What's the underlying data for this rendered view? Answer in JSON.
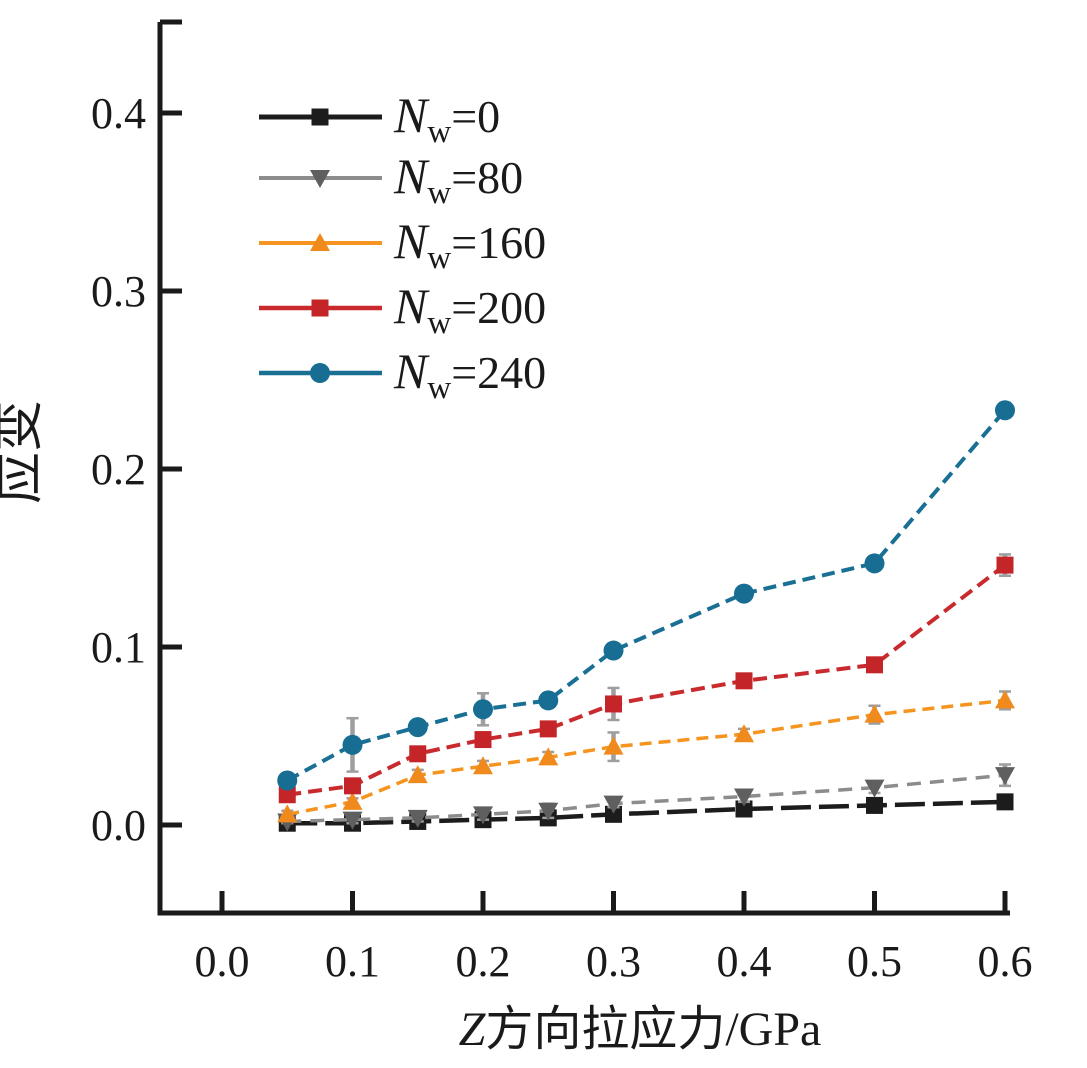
{
  "chart_data": {
    "type": "line",
    "title": "",
    "xlabel": {
      "italic": "Z",
      "rest": "方向拉应力/GPa"
    },
    "ylabel": "应变",
    "xlim": [
      -0.048,
      0.605
    ],
    "ylim": [
      -0.049,
      0.451
    ],
    "grid": false,
    "legend": {
      "position": "upper-left"
    },
    "axis_color": "#1a1a1a",
    "error_bar_color": "#9e9e9e",
    "x_axis": {
      "ticks": [
        0.0,
        0.1,
        0.2,
        0.3,
        0.4,
        0.5,
        0.6
      ],
      "tick_labels": [
        "0.0",
        "0.1",
        "0.2",
        "0.3",
        "0.4",
        "0.5",
        "0.6"
      ]
    },
    "y_axis": {
      "ticks": [
        0.0,
        0.1,
        0.2,
        0.3,
        0.4
      ],
      "tick_labels": [
        "0.0",
        "0.1",
        "0.2",
        "0.3",
        "0.4"
      ]
    },
    "x": [
      0.05,
      0.1,
      0.15,
      0.2,
      0.25,
      0.3,
      0.4,
      0.5,
      0.6
    ],
    "series": [
      {
        "name": "Nw=0",
        "legend_label": {
          "main": "N",
          "sub": "w",
          "rest": "=0"
        },
        "color": "#1c1c1c",
        "marker_color": "#1c1c1c",
        "marker": "square",
        "dash": "30 8",
        "width": 4.5,
        "values": [
          0.001,
          0.001,
          0.002,
          0.003,
          0.004,
          0.006,
          0.009,
          0.011,
          0.013
        ],
        "err": [
          0.001,
          0.001,
          0.001,
          0.001,
          0.002,
          0.001,
          0.001,
          0.002,
          0.002
        ]
      },
      {
        "name": "Nw=80",
        "legend_label": {
          "main": "N",
          "sub": "w",
          "rest": "=80"
        },
        "color": "#8c8c8c",
        "marker_color": "#5f5f5f",
        "marker": "triangle-down",
        "dash": "14 9",
        "width": 3.5,
        "values": [
          0.002,
          0.003,
          0.004,
          0.006,
          0.008,
          0.012,
          0.016,
          0.021,
          0.028
        ],
        "err": [
          0.001,
          0.002,
          0.002,
          0.003,
          0.004,
          0.002,
          0.003,
          0.003,
          0.006
        ]
      },
      {
        "name": "Nw=160",
        "legend_label": {
          "main": "N",
          "sub": "w",
          "rest": "=160"
        },
        "color": "#f5941e",
        "marker_color": "#f08a1d",
        "marker": "triangle-up",
        "dash": "12 7",
        "width": 3.5,
        "values": [
          0.006,
          0.013,
          0.028,
          0.033,
          0.038,
          0.044,
          0.051,
          0.062,
          0.07
        ],
        "err": [
          0.002,
          0.002,
          0.003,
          0.003,
          0.003,
          0.008,
          0.003,
          0.005,
          0.005
        ]
      },
      {
        "name": "Nw=200",
        "legend_label": {
          "main": "N",
          "sub": "w",
          "rest": "=200"
        },
        "color": "#c92a2d",
        "marker_color": "#c42528",
        "marker": "square",
        "dash": "14 7",
        "width": 4,
        "values": [
          0.017,
          0.022,
          0.04,
          0.048,
          0.054,
          0.068,
          0.081,
          0.09,
          0.146
        ],
        "err": [
          0.002,
          0.003,
          0.003,
          0.003,
          0.003,
          0.009,
          0.003,
          0.003,
          0.006
        ]
      },
      {
        "name": "Nw=240",
        "legend_label": {
          "main": "N",
          "sub": "w",
          "rest": "=240"
        },
        "color": "#1a7094",
        "marker_color": "#176d92",
        "marker": "circle",
        "dash": "13 7",
        "width": 4,
        "values": [
          0.025,
          0.045,
          0.055,
          0.065,
          0.07,
          0.098,
          0.13,
          0.147,
          0.233
        ],
        "err": [
          0.003,
          0.015,
          0.003,
          0.009,
          0.004,
          0.003,
          0.003,
          0.004,
          0.004
        ]
      }
    ]
  }
}
